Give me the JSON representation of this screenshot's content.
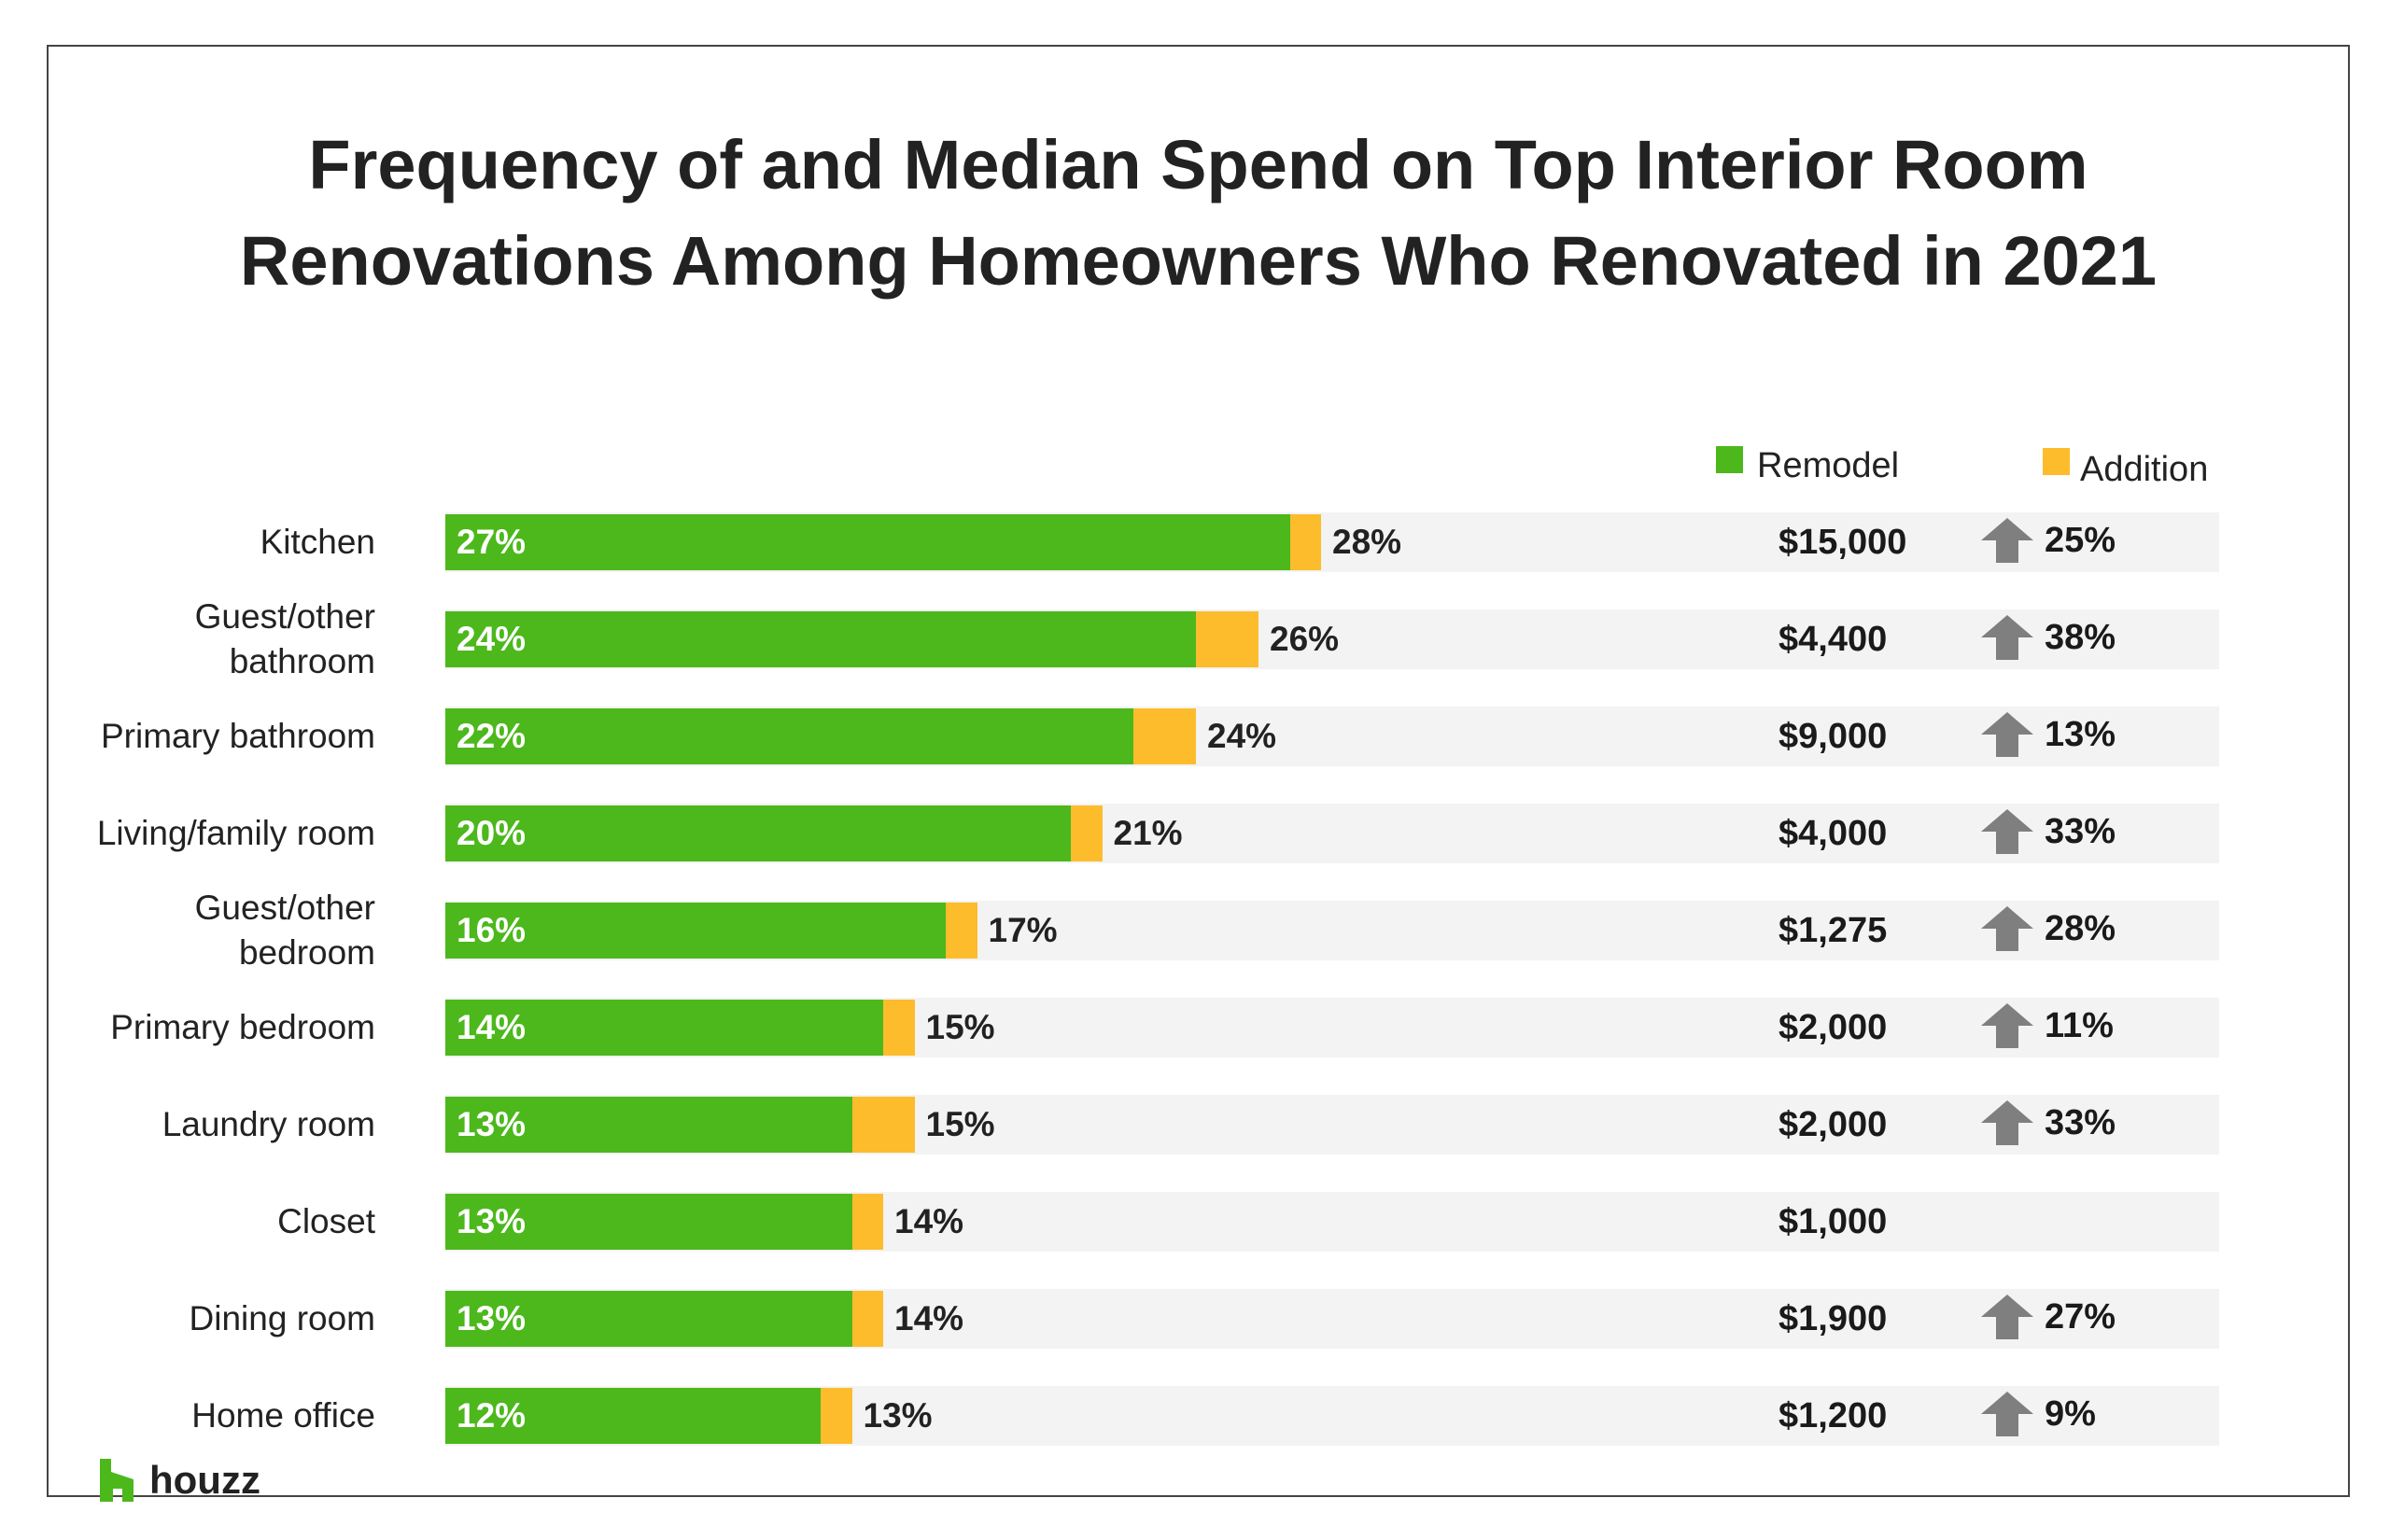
{
  "chart_data": {
    "type": "bar",
    "orientation": "horizontal",
    "stacked": true,
    "title": "Frequency of and Median Spend on Top Interior Room Renovations Among Homeowners Who Renovated in 2021",
    "title_lines": [
      "Frequency of and Median Spend on Top Interior Room",
      "Renovations Among Homeowners Who Renovated in 2021"
    ],
    "legend": [
      {
        "name": "Remodel",
        "color": "#4cb81c"
      },
      {
        "name": "Addition",
        "color": "#fdbc2c"
      }
    ],
    "legend_placement": "top-right",
    "xlim": [
      0,
      50
    ],
    "grid": false,
    "colors": {
      "remodel": "#4cb81c",
      "addition": "#fdbc2c",
      "row_background": "#f3f3f3",
      "arrow": "#7f7f7f"
    },
    "categories": [
      "Kitchen",
      "Guest/other bathroom",
      "Primary bathroom",
      "Living/family room",
      "Guest/other bedroom",
      "Primary bedroom",
      "Laundry room",
      "Closet",
      "Dining room",
      "Home office"
    ],
    "category_lines": [
      [
        "Kitchen"
      ],
      [
        "Guest/other",
        "bathroom"
      ],
      [
        "Primary bathroom"
      ],
      [
        "Living/family room"
      ],
      [
        "Guest/other",
        "bedroom"
      ],
      [
        "Primary bedroom"
      ],
      [
        "Laundry room"
      ],
      [
        "Closet"
      ],
      [
        "Dining room"
      ],
      [
        "Home office"
      ]
    ],
    "series": [
      {
        "name": "Remodel",
        "values": [
          27,
          24,
          22,
          20,
          16,
          14,
          13,
          13,
          13,
          12
        ]
      },
      {
        "name": "Addition",
        "values": [
          1,
          2,
          2,
          1,
          1,
          1,
          2,
          1,
          1,
          1
        ]
      }
    ],
    "remodel_labels": [
      "27%",
      "24%",
      "22%",
      "20%",
      "16%",
      "14%",
      "13%",
      "13%",
      "13%",
      "12%"
    ],
    "total_labels": [
      "28%",
      "26%",
      "24%",
      "21%",
      "17%",
      "15%",
      "15%",
      "14%",
      "14%",
      "13%"
    ],
    "median_spend": [
      "$15,000",
      "$4,400",
      "$9,000",
      "$4,000",
      "$1,275",
      "$2,000",
      "$2,000",
      "$1,000",
      "$1,900",
      "$1,200"
    ],
    "spend_change": [
      "25%",
      "38%",
      "13%",
      "33%",
      "28%",
      "11%",
      "33%",
      null,
      "27%",
      "9%"
    ],
    "change_direction": [
      "up",
      "up",
      "up",
      "up",
      "up",
      "up",
      "up",
      null,
      "up",
      "up"
    ]
  },
  "logo": {
    "text": "houzz",
    "icon": "houzz-logo-icon"
  }
}
